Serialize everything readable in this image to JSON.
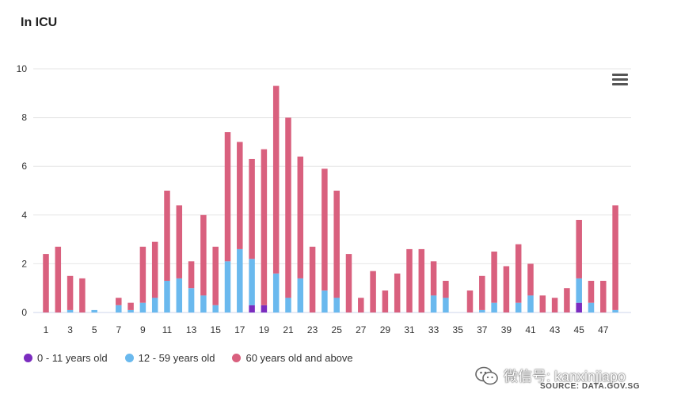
{
  "title": "In ICU",
  "source": "SOURCE: DATA.GOV.SG",
  "watermark": "微信号: kanxinjiapo",
  "legend": [
    {
      "name": "0 - 11 years old",
      "color": "#7b2cbf"
    },
    {
      "name": "12 - 59 years old",
      "color": "#6ab9ee"
    },
    {
      "name": "60 years old and above",
      "color": "#d9607e"
    }
  ],
  "chart_data": {
    "type": "bar",
    "stacked": true,
    "title": "In ICU",
    "x": [
      1,
      2,
      3,
      4,
      5,
      6,
      7,
      8,
      9,
      10,
      11,
      12,
      13,
      14,
      15,
      16,
      17,
      18,
      19,
      20,
      21,
      22,
      23,
      24,
      25,
      26,
      27,
      28,
      29,
      30,
      31,
      32,
      33,
      34,
      35,
      36,
      37,
      38,
      39,
      40,
      41,
      42,
      43,
      44,
      45,
      46,
      47,
      48
    ],
    "x_tick_labels": [
      "1",
      "3",
      "5",
      "7",
      "9",
      "11",
      "13",
      "15",
      "17",
      "19",
      "21",
      "23",
      "25",
      "27",
      "29",
      "31",
      "33",
      "35",
      "37",
      "39",
      "41",
      "43",
      "45",
      "47"
    ],
    "y_ticks": [
      0,
      2,
      4,
      6,
      8,
      10
    ],
    "ylim": [
      0,
      10
    ],
    "grid": true,
    "legend_position": "bottom-left",
    "series": [
      {
        "name": "0 - 11 years old",
        "color": "#7b2cbf",
        "values": [
          0,
          0,
          0,
          0,
          0,
          0,
          0,
          0,
          0,
          0,
          0,
          0,
          0,
          0,
          0,
          0,
          0,
          0.3,
          0.3,
          0,
          0,
          0,
          0,
          0,
          0,
          0,
          0,
          0,
          0,
          0,
          0,
          0,
          0,
          0,
          0,
          0,
          0,
          0,
          0,
          0,
          0,
          0,
          0,
          0,
          0.4,
          0,
          0,
          0
        ]
      },
      {
        "name": "12 - 59 years old",
        "color": "#6ab9ee",
        "values": [
          0,
          0,
          0.1,
          0,
          0.1,
          0,
          0.3,
          0.1,
          0.4,
          0.6,
          1.3,
          1.4,
          1.0,
          0.7,
          0.3,
          2.1,
          2.6,
          1.9,
          0,
          1.6,
          0.6,
          1.4,
          0,
          0.9,
          0.6,
          0,
          0,
          0,
          0,
          0,
          0,
          0,
          0.7,
          0.6,
          0,
          0,
          0.1,
          0.4,
          0,
          0.4,
          0.7,
          0,
          0,
          0,
          1.0,
          0.4,
          0,
          0.1
        ]
      },
      {
        "name": "60 years old and above",
        "color": "#d9607e",
        "values": [
          2.4,
          2.7,
          1.4,
          1.4,
          0,
          0,
          0.3,
          0.3,
          2.3,
          2.3,
          3.7,
          3.0,
          1.1,
          3.3,
          2.4,
          5.3,
          4.4,
          4.1,
          6.4,
          7.7,
          7.4,
          5.0,
          2.7,
          5.0,
          4.4,
          2.4,
          0.6,
          1.7,
          0.9,
          1.6,
          2.6,
          2.6,
          1.4,
          0.7,
          0,
          0.9,
          1.4,
          2.1,
          1.9,
          2.4,
          1.3,
          0.7,
          0.6,
          1.0,
          2.4,
          0.9,
          1.3,
          4.3
        ]
      }
    ]
  }
}
